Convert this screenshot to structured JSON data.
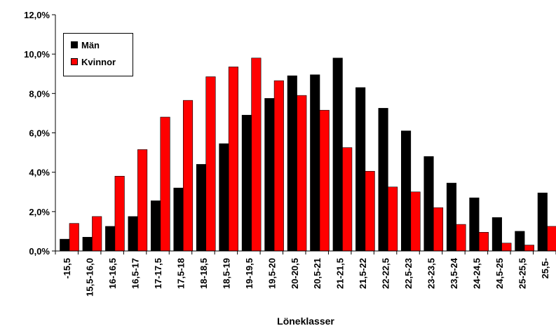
{
  "chart_data": {
    "type": "bar",
    "xlabel": "Löneklasser",
    "ylabel": "",
    "ylim": [
      0,
      12
    ],
    "y_ticks": [
      "0,0%",
      "2,0%",
      "4,0%",
      "6,0%",
      "8,0%",
      "10,0%",
      "12,0%"
    ],
    "grid": false,
    "legend": "top-left",
    "categories": [
      "-15,5",
      "15,5-16,0",
      "16-16,5",
      "16,5-17",
      "17-17,5",
      "17,5-18",
      "18-18,5",
      "18,5-19",
      "19-19,5",
      "19,5-20",
      "20-20,5",
      "20,5-21",
      "21-21,5",
      "21,5-22",
      "22-22,5",
      "22,5-23",
      "23-23,5",
      "23,5-24",
      "24-24,5",
      "24,5-25",
      "25-25,5",
      "25,5-"
    ],
    "series": [
      {
        "name": "Män",
        "color": "#000000",
        "values": [
          0.6,
          0.7,
          1.25,
          1.75,
          2.55,
          3.2,
          4.4,
          5.45,
          6.9,
          7.75,
          8.9,
          8.95,
          9.8,
          8.3,
          7.25,
          6.1,
          4.8,
          3.45,
          2.7,
          1.7,
          1.0,
          2.95
        ]
      },
      {
        "name": "Kvinnor",
        "color": "#ff0000",
        "values": [
          1.4,
          1.75,
          3.8,
          5.15,
          6.8,
          7.65,
          8.85,
          9.35,
          9.8,
          8.65,
          7.9,
          7.15,
          5.25,
          4.05,
          3.25,
          3.0,
          2.2,
          1.35,
          0.95,
          0.4,
          0.3,
          1.25
        ]
      }
    ]
  }
}
